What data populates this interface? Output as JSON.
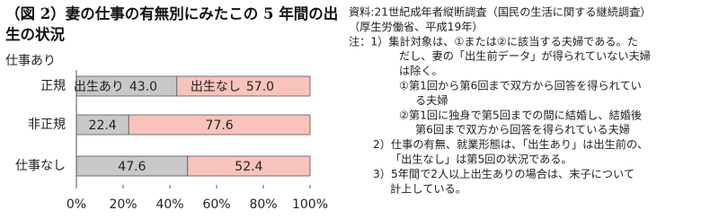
{
  "chart_data": {
    "type": "stacked-barh",
    "title": "（図 2）妻の仕事の有無別にみたこの 5 年間の出生の状況",
    "group_label": "仕事あり",
    "categories": [
      "正規",
      "非正規",
      "仕事なし"
    ],
    "series": [
      {
        "name": "出生あり",
        "color": "#c8c8c8",
        "values": [
          43.0,
          22.4,
          47.6
        ],
        "value_labels": [
          "43.0",
          "22.4",
          "47.6"
        ]
      },
      {
        "name": "出生なし",
        "color": "#f8c3bb",
        "values": [
          57.0,
          77.6,
          52.4
        ],
        "value_labels": [
          "57.0",
          "77.6",
          "52.4"
        ]
      }
    ],
    "xlim": [
      0,
      100
    ],
    "xticks": [
      {
        "value": 0,
        "label": "0%"
      },
      {
        "value": 20,
        "label": "20%"
      },
      {
        "value": 40,
        "label": "40%"
      },
      {
        "value": 60,
        "label": "60%"
      },
      {
        "value": 80,
        "label": "80%"
      },
      {
        "value": 100,
        "label": "100%"
      }
    ]
  },
  "notes": [
    "資料:21世紀成年者縦断調査（国民の生活に関する継続調査）",
    "（厚生労働省、平成19年）",
    "注：1）集計対象は、①または②に該当する夫婦である。た",
    "だし、妻の「出生前データ」が得られていない夫婦",
    "は除く。",
    "①第1回から第6回まで双方から回答を得られてい",
    "る夫婦",
    "②第1回に独身で第5回までの間に結婚し、結婚後",
    "第6回まで双方から回答を得られている夫婦",
    "2）仕事の有無、就業形態は、「出生あり」は出生前の、",
    "「出生なし」は第5回の状況である。",
    "3）5年間で2人以上出生ありの場合は、末子について",
    "計上している。"
  ]
}
